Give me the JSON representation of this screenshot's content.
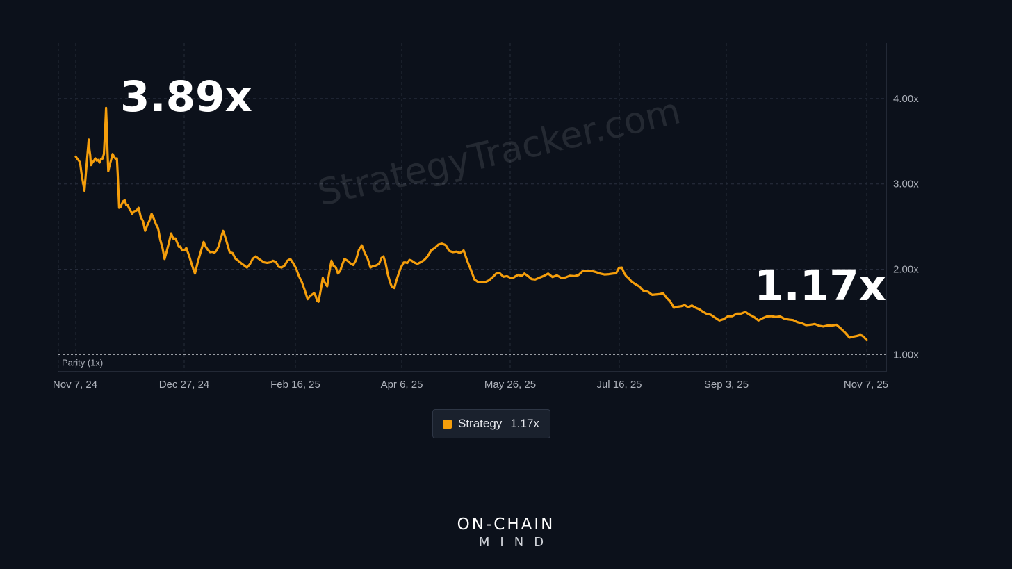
{
  "chart_data": {
    "type": "line",
    "watermark": "StrategyTracker.com",
    "start_label": "3.89x",
    "end_label": "1.17x",
    "parity_label": "Parity (1x)",
    "parity_value": 1.0,
    "x_tick_labels": [
      "Nov 7, 24",
      "Dec 27, 24",
      "Feb 16, 25",
      "Apr 6, 25",
      "May 26, 25",
      "Jul 16, 25",
      "Sep 3, 25",
      "Nov 7, 25"
    ],
    "y_ticks": [
      1.0,
      2.0,
      3.0,
      4.0
    ],
    "y_tick_labels": [
      "1.00x",
      "2.00x",
      "3.00x",
      "4.00x"
    ],
    "ylim": [
      0.8,
      4.65
    ],
    "grid": true,
    "legend": {
      "position": "bottom-center",
      "value": "1.17x"
    },
    "series": [
      {
        "name": "Strategy",
        "color": "#f59e0b",
        "start_date": "2024-11-07",
        "end_date": "2025-11-07",
        "dates": [
          "2024-11-07",
          "2024-11-09",
          "2024-11-11",
          "2024-11-13",
          "2024-11-14",
          "2024-11-16",
          "2024-11-18",
          "2024-11-20",
          "2024-11-21",
          "2024-11-22",
          "2024-11-24",
          "2024-11-26",
          "2024-11-27",
          "2024-11-29",
          "2024-12-01",
          "2024-12-03",
          "2024-12-06",
          "2024-12-09",
          "2024-12-12",
          "2024-12-15",
          "2024-12-18",
          "2024-12-21",
          "2024-12-24",
          "2024-12-26",
          "2024-12-28",
          "2025-01-01",
          "2025-01-05",
          "2025-01-08",
          "2025-01-11",
          "2025-01-14",
          "2025-01-17",
          "2025-01-21",
          "2025-01-25",
          "2025-01-29",
          "2025-02-02",
          "2025-02-06",
          "2025-02-10",
          "2025-02-14",
          "2025-02-18",
          "2025-02-22",
          "2025-02-25",
          "2025-02-27",
          "2025-03-01",
          "2025-03-03",
          "2025-03-05",
          "2025-03-08",
          "2025-03-11",
          "2025-03-15",
          "2025-03-19",
          "2025-03-23",
          "2025-03-26",
          "2025-03-29",
          "2025-04-01",
          "2025-04-03",
          "2025-04-06",
          "2025-04-08",
          "2025-04-11",
          "2025-04-15",
          "2025-04-20",
          "2025-04-25",
          "2025-04-30",
          "2025-05-05",
          "2025-05-10",
          "2025-05-15",
          "2025-05-20",
          "2025-05-25",
          "2025-05-29",
          "2025-06-02",
          "2025-06-07",
          "2025-06-13",
          "2025-06-19",
          "2025-06-25",
          "2025-07-01",
          "2025-07-07",
          "2025-07-13",
          "2025-07-17",
          "2025-07-20",
          "2025-07-25",
          "2025-07-31",
          "2025-08-05",
          "2025-08-10",
          "2025-08-15",
          "2025-08-20",
          "2025-08-25",
          "2025-08-31",
          "2025-09-06",
          "2025-09-12",
          "2025-09-18",
          "2025-09-24",
          "2025-09-30",
          "2025-10-06",
          "2025-10-12",
          "2025-10-18",
          "2025-10-24",
          "2025-10-30",
          "2025-11-04",
          "2025-11-07"
        ],
        "values": [
          3.32,
          3.25,
          2.92,
          3.52,
          3.22,
          3.3,
          3.25,
          3.35,
          3.89,
          3.15,
          3.35,
          3.3,
          2.72,
          2.8,
          2.75,
          2.65,
          2.72,
          2.45,
          2.65,
          2.48,
          2.12,
          2.42,
          2.3,
          2.22,
          2.25,
          1.95,
          2.32,
          2.2,
          2.22,
          2.45,
          2.2,
          2.1,
          2.02,
          2.15,
          2.08,
          2.1,
          2.02,
          2.12,
          1.92,
          1.65,
          1.72,
          1.62,
          1.9,
          1.8,
          2.1,
          1.95,
          2.12,
          2.05,
          2.28,
          2.02,
          2.05,
          2.15,
          1.85,
          1.78,
          2.02,
          2.08,
          2.1,
          2.08,
          2.22,
          2.3,
          2.2,
          2.22,
          1.88,
          1.85,
          1.95,
          1.92,
          1.92,
          1.95,
          1.88,
          1.95,
          1.9,
          1.92,
          1.98,
          1.95,
          1.95,
          2.02,
          1.9,
          1.8,
          1.7,
          1.72,
          1.55,
          1.58,
          1.55,
          1.48,
          1.4,
          1.45,
          1.5,
          1.4,
          1.45,
          1.42,
          1.38,
          1.35,
          1.33,
          1.35,
          1.2,
          1.23,
          1.17
        ]
      }
    ]
  },
  "branding": {
    "line1": "ON-CHAIN",
    "line2": "MIND"
  }
}
